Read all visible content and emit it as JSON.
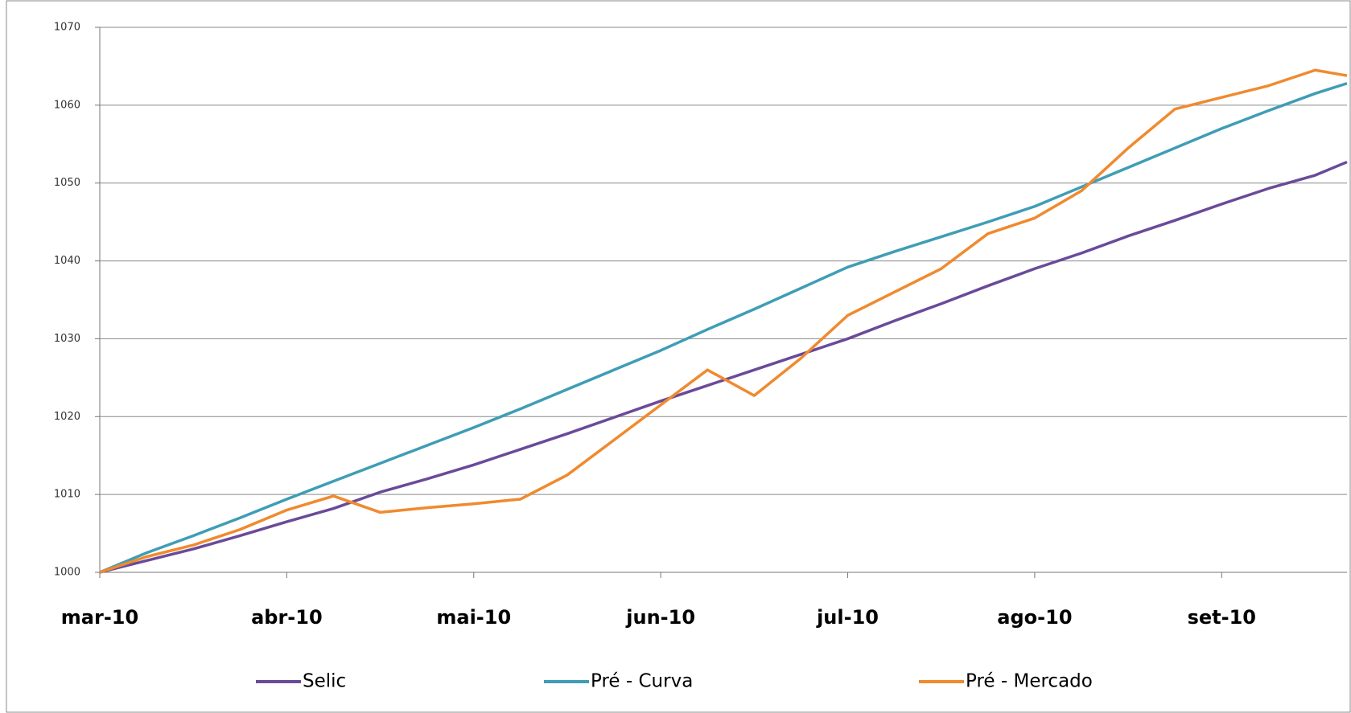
{
  "chart_data": {
    "type": "line",
    "x": [
      0,
      0.25,
      0.5,
      0.75,
      1,
      1.25,
      1.5,
      1.75,
      2,
      2.25,
      2.5,
      2.75,
      3,
      3.25,
      3.5,
      3.75,
      4,
      4.25,
      4.5,
      4.75,
      5,
      5.25,
      5.5,
      5.75,
      6,
      6.25,
      6.5,
      6.67
    ],
    "series": [
      {
        "name": "Selic",
        "color": "#6a4a99",
        "values": [
          1000,
          1001.5,
          1003,
          1004.7,
          1006.5,
          1008.2,
          1010.3,
          1012,
          1013.8,
          1015.8,
          1017.8,
          1019.9,
          1022,
          1024,
          1026,
          1028,
          1030,
          1032.3,
          1034.5,
          1036.8,
          1039,
          1041,
          1043.2,
          1045.2,
          1047.3,
          1049.3,
          1051,
          1052.7
        ]
      },
      {
        "name": "Pré - Curva",
        "color": "#3f9db6",
        "values": [
          1000,
          1002.5,
          1004.7,
          1007,
          1009.4,
          1011.7,
          1014,
          1016.3,
          1018.6,
          1021,
          1023.5,
          1026,
          1028.5,
          1031.2,
          1033.8,
          1036.5,
          1039.2,
          1041.2,
          1043.1,
          1045,
          1047,
          1049.5,
          1052,
          1054.5,
          1057,
          1059.3,
          1061.5,
          1062.8
        ]
      },
      {
        "name": "Pré - Mercado",
        "color": "#f08a2e",
        "values": [
          1000,
          1002,
          1003.5,
          1005.5,
          1008,
          1009.8,
          1007.7,
          1008.3,
          1008.8,
          1009.4,
          1012.5,
          1017,
          1021.5,
          1026,
          1022.7,
          1027.5,
          1033,
          1036,
          1039,
          1043.5,
          1045.5,
          1049,
          1054.5,
          1059.5,
          1061,
          1062.5,
          1064.5,
          1063.8
        ]
      }
    ],
    "xlim": [
      0,
      6.67
    ],
    "xticks": [
      {
        "value": 0,
        "label": "mar-10"
      },
      {
        "value": 1,
        "label": "abr-10"
      },
      {
        "value": 2,
        "label": "mai-10"
      },
      {
        "value": 3,
        "label": "jun-10"
      },
      {
        "value": 4,
        "label": "jul-10"
      },
      {
        "value": 5,
        "label": "ago-10"
      },
      {
        "value": 6,
        "label": "set-10"
      }
    ],
    "ylim": [
      1000,
      1070
    ],
    "yticks": [
      1000,
      1010,
      1020,
      1030,
      1040,
      1050,
      1060,
      1070
    ],
    "grid": true,
    "legend": "bottom"
  }
}
